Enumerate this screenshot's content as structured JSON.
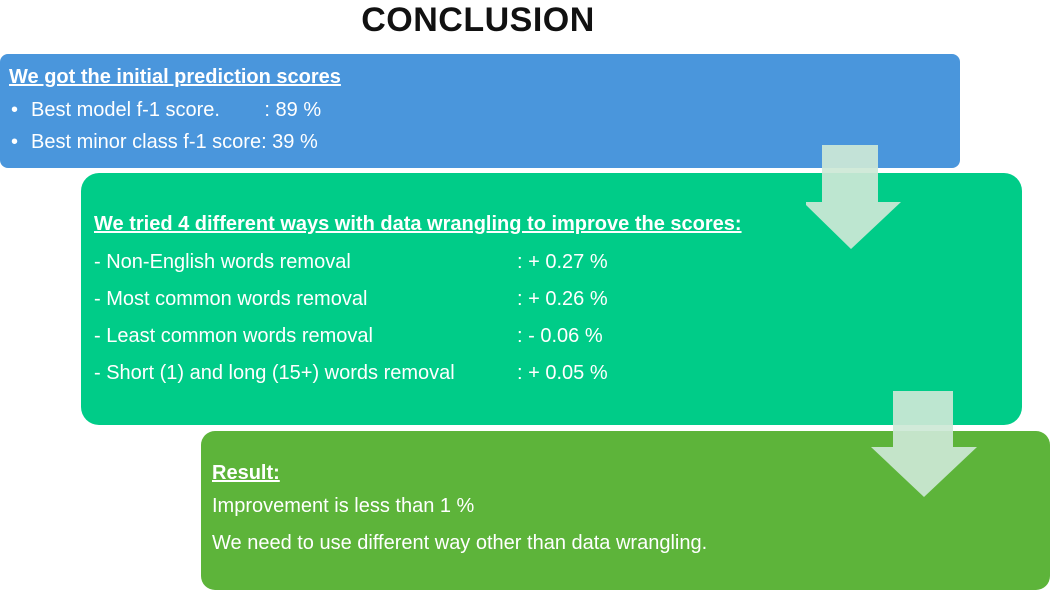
{
  "title": "CONCLUSION",
  "colors": {
    "box1": "#4a96dc",
    "box2": "#00cc88",
    "box3": "#5db43a",
    "arrow": "#cde8d6",
    "text": "#ffffff"
  },
  "box1": {
    "heading": "We got the initial prediction scores",
    "items": [
      "Best model f-1 score.        : 89 %",
      "Best minor class f-1 score: 39 %"
    ]
  },
  "box2": {
    "heading": "We tried 4 different ways with data wrangling to improve the scores:",
    "rows": [
      {
        "label": "- Non-English words removal",
        "value": ": + 0.27 %"
      },
      {
        "label": "- Most common words removal",
        "value": ": + 0.26 %"
      },
      {
        "label": "- Least common words removal",
        "value": ": - 0.06 %"
      },
      {
        "label": "- Short (1) and long (15+) words removal",
        "value": ": + 0.05 %"
      }
    ]
  },
  "box3": {
    "heading": "Result:",
    "lines": [
      "Improvement is less than 1 %",
      "We need to use different way other than data wrangling."
    ]
  },
  "arrows": [
    "down-arrow",
    "down-arrow"
  ]
}
